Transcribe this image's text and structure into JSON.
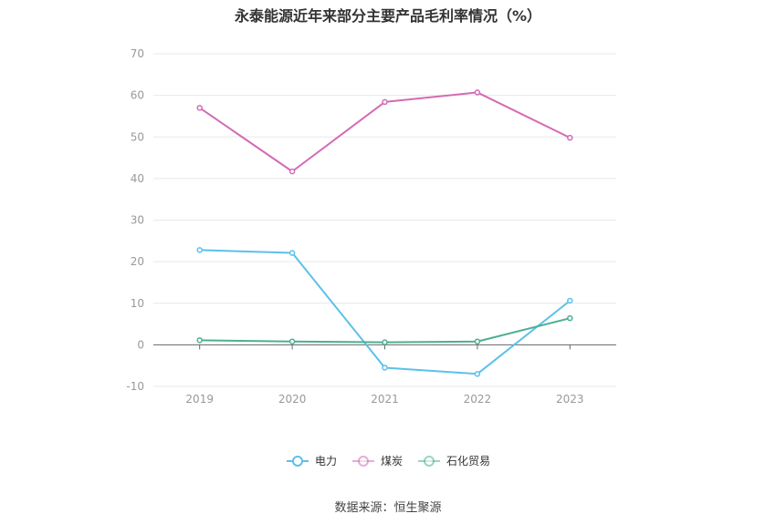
{
  "chart_data": {
    "type": "line",
    "title": "永泰能源近年来部分主要产品毛利率情况（%）",
    "categories": [
      "2019",
      "2020",
      "2021",
      "2022",
      "2023"
    ],
    "series": [
      {
        "name": "电力",
        "color": "#5bc0eb",
        "values": [
          22.8,
          22.1,
          -5.5,
          -7.0,
          10.6
        ]
      },
      {
        "name": "煤炭",
        "color": "#d36bb4",
        "values": [
          57.0,
          41.7,
          58.4,
          60.7,
          49.8
        ]
      },
      {
        "name": "石化贸易",
        "color": "#4caf93",
        "values": [
          1.1,
          0.8,
          0.6,
          0.8,
          6.4
        ]
      }
    ],
    "ylim": [
      -10,
      70
    ],
    "yticks": [
      -10,
      0,
      10,
      20,
      30,
      40,
      50,
      60,
      70
    ],
    "grid": true,
    "legend_position": "bottom"
  },
  "source": "数据来源：恒生聚源"
}
